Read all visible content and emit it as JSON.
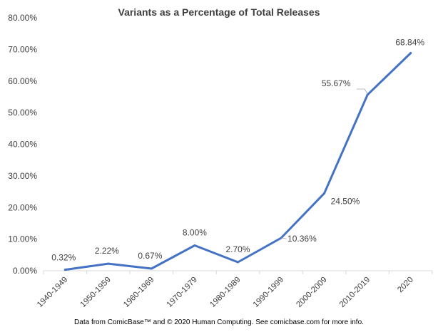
{
  "chart_data": {
    "type": "line",
    "title": "Variants as a Percentage of Total Releases",
    "footnote": "Data from ComicBase™ and © 2020 Human Computing. See comicbase.com for more info.",
    "categories": [
      "1940-1949",
      "1950-1959",
      "1960-1969",
      "1970-1979",
      "1980-1989",
      "1990-1999",
      "2000-2009",
      "2010-2019",
      "2020"
    ],
    "series": [
      {
        "values": [
          0.32,
          2.22,
          0.67,
          8.0,
          2.7,
          10.36,
          24.5,
          55.67,
          68.84
        ],
        "labels": [
          "0.32%",
          "2.22%",
          "0.67%",
          "8.00%",
          "2.70%",
          "10.36%",
          "24.50%",
          "55.67%",
          "68.84%"
        ]
      }
    ],
    "ylim": [
      0,
      80
    ],
    "yticks": [
      "0.00%",
      "10.00%",
      "20.00%",
      "30.00%",
      "40.00%",
      "50.00%",
      "60.00%",
      "70.00%",
      "80.00%"
    ],
    "xlabel": "",
    "ylabel": "",
    "grid": false,
    "legend": "none",
    "colors": {
      "line": "#4472C4",
      "text": "#404040",
      "axis": "#D9D9D9",
      "leader": "#A6A6A6"
    }
  }
}
